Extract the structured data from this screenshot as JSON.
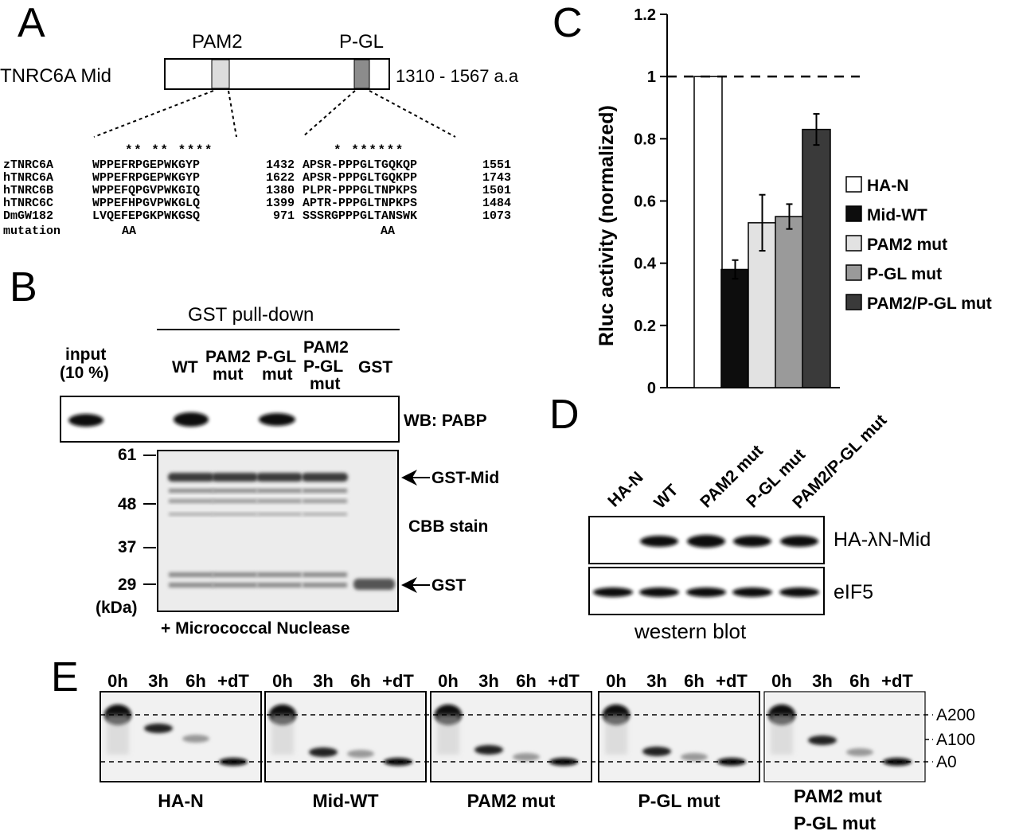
{
  "panels": {
    "a": "A",
    "b": "B",
    "c": "C",
    "d": "D",
    "e": "E"
  },
  "panel_a": {
    "protein": "TNRC6A Mid",
    "range": "1310 - 1567 a.a",
    "motif1": "PAM2",
    "motif2": "P-GL",
    "stars1": "** ** ****",
    "stars2": "* ******",
    "align_names": [
      "zTNRC6A",
      "hTNRC6A",
      "hTNRC6B",
      "hTNRC6C",
      "DmGW182",
      "mutation"
    ],
    "pam2_seq": [
      "WPPEFRPGEPWKGYP",
      "WPPEFRPGEPWKGYP",
      "WPPEFQPGVPWKGIQ",
      "WPPEFHPGVPWKGLQ",
      "LVQEFEPGKPWKGSQ",
      "AA"
    ],
    "pam2_num": [
      "1432",
      "1622",
      "1380",
      "1399",
      "971"
    ],
    "pgl_seq": [
      "APSR-PPPGLTGQKQP",
      "APSR-PPPGLTGQKPP",
      "PLPR-PPPGLTNPKPS",
      "APTR-PPPGLTNPKPS",
      "SSSRGPPPGLTANSWK",
      "AA"
    ],
    "pgl_num": [
      "1551",
      "1743",
      "1501",
      "1484",
      "1073"
    ]
  },
  "panel_b": {
    "title": "GST pull-down",
    "input": "input",
    "input_pct": "(10 %)",
    "lanes": {
      "wt": "WT",
      "pam2_1": "PAM2",
      "pam2_2": "mut",
      "pgl_1": "P-GL",
      "pgl_2": "mut",
      "dbl_1": "PAM2",
      "dbl_2": "P-GL",
      "dbl_3": "mut",
      "gst": "GST"
    },
    "wb": "WB: PABP",
    "markers": [
      "61",
      "48",
      "37",
      "29"
    ],
    "kda": "(kDa)",
    "gst_mid": "GST-Mid",
    "cbb": "CBB stain",
    "gst_label": "GST",
    "nuclease": "+ Micrococcal Nuclease"
  },
  "chart_data": {
    "type": "bar",
    "title": "",
    "xlabel": "",
    "ylabel": "Rluc activity (normalized)",
    "ylim": [
      0,
      1.2
    ],
    "yticks": [
      "0",
      "0.2",
      "0.4",
      "0.6",
      "0.8",
      "1",
      "1.2"
    ],
    "categories": [
      "HA-N",
      "Mid-WT",
      "PAM2 mut",
      "P-GL mut",
      "PAM2/P-GL mut"
    ],
    "values": [
      1.0,
      0.38,
      0.53,
      0.55,
      0.83
    ],
    "errors": [
      0,
      0.03,
      0.09,
      0.04,
      0.05
    ],
    "colors": [
      "#ffffff",
      "#0d0d0d",
      "#e2e2e2",
      "#9a9a9a",
      "#3a3a3a"
    ],
    "reference_line": 1,
    "legend_position": "right"
  },
  "panel_d": {
    "lanes": [
      "HA-N",
      "WT",
      "PAM2 mut",
      "P-GL mut",
      "PAM2/P-GL mut"
    ],
    "band1": "HA-λN-Mid",
    "band2": "eIF5",
    "caption": "western blot"
  },
  "panel_e": {
    "times": [
      "0h",
      "3h",
      "6h",
      "+dT"
    ],
    "groups": [
      "HA-N",
      "Mid-WT",
      "PAM2 mut",
      "P-GL mut"
    ],
    "group5_line1": "PAM2 mut",
    "group5_line2": "P-GL mut",
    "markers": [
      "A200",
      "A100",
      "A0"
    ]
  }
}
